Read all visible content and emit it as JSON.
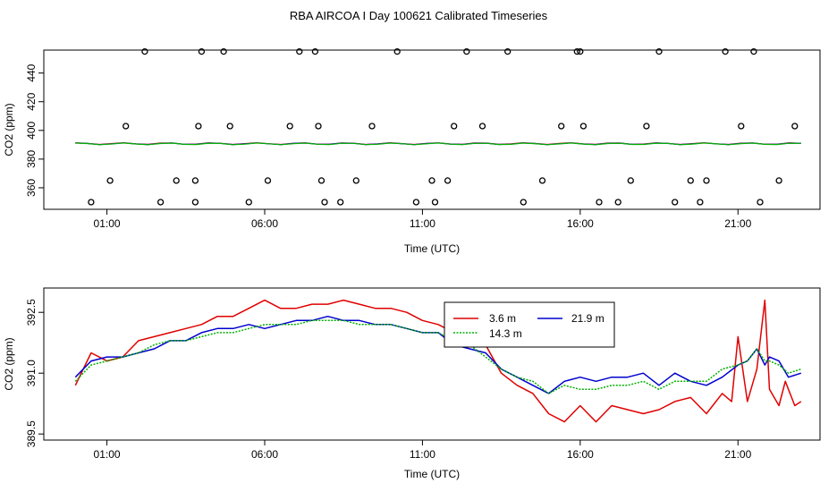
{
  "title": "RBA AIRCOA I  Day 100621  Calibrated Timeseries",
  "chart_data": [
    {
      "type": "scatter+line",
      "xlabel": "Time (UTC)",
      "ylabel": "CO2 (ppm)",
      "xlim": [
        -1.0,
        23.6
      ],
      "ylim": [
        345,
        456
      ],
      "xticks": [
        1,
        6,
        11,
        16,
        21
      ],
      "xtick_labels": [
        "01:00",
        "06:00",
        "11:00",
        "16:00",
        "21:00"
      ],
      "yticks": [
        360,
        380,
        400,
        420,
        440
      ],
      "ytick_labels": [
        "360",
        "380",
        "400",
        "420",
        "440"
      ],
      "outlier_points": {
        "x": [
          0.5,
          1.1,
          1.6,
          2.2,
          2.7,
          3.2,
          3.8,
          3.8,
          3.9,
          4.0,
          4.7,
          4.9,
          5.5,
          6.1,
          6.8,
          7.1,
          7.6,
          7.7,
          7.8,
          7.9,
          8.4,
          8.9,
          9.4,
          10.2,
          10.8,
          11.3,
          11.4,
          11.8,
          12.0,
          12.4,
          12.9,
          13.7,
          14.2,
          14.8,
          15.4,
          15.9,
          16.0,
          16.1,
          16.6,
          17.2,
          17.6,
          18.1,
          18.5,
          19.0,
          19.5,
          19.8,
          20.0,
          20.6,
          21.1,
          21.5,
          21.7,
          22.3,
          22.8
        ],
        "y": [
          350,
          365,
          403,
          455,
          350,
          365,
          350,
          365,
          403,
          455,
          455,
          403,
          350,
          365,
          403,
          455,
          455,
          403,
          365,
          350,
          350,
          365,
          403,
          455,
          350,
          365,
          350,
          365,
          403,
          455,
          403,
          455,
          350,
          365,
          403,
          455,
          455,
          403,
          350,
          350,
          365,
          403,
          455,
          350,
          365,
          350,
          365,
          455,
          403,
          455,
          350,
          365,
          403
        ]
      },
      "series": [
        {
          "name": "3.6 m",
          "color": "#e00000",
          "level": 390.8
        },
        {
          "name": "21.9 m",
          "color": "#0000d0",
          "level": 390.7
        },
        {
          "name": "14.3 m",
          "color": "#00b000",
          "level": 390.6
        }
      ]
    },
    {
      "type": "line",
      "xlabel": "Time (UTC)",
      "ylabel": "CO2 (ppm)",
      "xlim": [
        -1.0,
        23.6
      ],
      "ylim": [
        389.35,
        393.1
      ],
      "xticks": [
        1,
        6,
        11,
        16,
        21
      ],
      "xtick_labels": [
        "01:00",
        "06:00",
        "11:00",
        "16:00",
        "21:00"
      ],
      "yticks": [
        389.5,
        391.0,
        392.5
      ],
      "ytick_labels": [
        "389.5",
        "391.0",
        "392.5"
      ],
      "legend": {
        "placement": "top-center"
      },
      "series": [
        {
          "name": "3.6 m",
          "color": "#e00000",
          "x": [
            0.0,
            0.5,
            1.0,
            1.5,
            2.0,
            2.5,
            3.0,
            3.5,
            4.0,
            4.5,
            5.0,
            5.5,
            6.0,
            6.5,
            7.0,
            7.5,
            8.0,
            8.5,
            9.0,
            9.5,
            10.0,
            10.5,
            11.0,
            11.5,
            12.0,
            12.5,
            13.0,
            13.5,
            14.0,
            14.5,
            15.0,
            15.5,
            16.0,
            16.5,
            17.0,
            17.5,
            18.0,
            18.5,
            19.0,
            19.5,
            20.0,
            20.5,
            20.8,
            21.0,
            21.3,
            21.6,
            21.85,
            22.0,
            22.3,
            22.5,
            22.8,
            23.0
          ],
          "y": [
            390.7,
            391.5,
            391.3,
            391.4,
            391.8,
            391.9,
            392.0,
            392.1,
            392.2,
            392.4,
            392.4,
            392.6,
            392.8,
            392.6,
            392.6,
            392.7,
            392.7,
            392.8,
            392.7,
            392.6,
            392.6,
            392.5,
            392.3,
            392.2,
            392.0,
            391.9,
            391.7,
            391.0,
            390.7,
            390.5,
            390.0,
            389.8,
            390.2,
            389.8,
            390.2,
            390.1,
            390.0,
            390.1,
            390.3,
            390.4,
            390.0,
            390.5,
            390.3,
            391.9,
            390.3,
            391.1,
            392.8,
            390.6,
            390.2,
            390.8,
            390.2,
            390.3
          ]
        },
        {
          "name": "21.9 m",
          "color": "#0000d0",
          "x": [
            0.0,
            0.5,
            1.0,
            1.5,
            2.0,
            2.5,
            3.0,
            3.5,
            4.0,
            4.5,
            5.0,
            5.5,
            6.0,
            6.5,
            7.0,
            7.5,
            8.0,
            8.5,
            9.0,
            9.5,
            10.0,
            10.5,
            11.0,
            11.5,
            12.0,
            12.5,
            13.0,
            13.5,
            14.0,
            14.5,
            15.0,
            15.5,
            16.0,
            16.5,
            17.0,
            17.5,
            18.0,
            18.5,
            19.0,
            19.5,
            20.0,
            20.5,
            21.0,
            21.3,
            21.6,
            21.85,
            22.0,
            22.3,
            22.6,
            23.0
          ],
          "y": [
            390.9,
            391.3,
            391.4,
            391.4,
            391.5,
            391.6,
            391.8,
            391.8,
            392.0,
            392.1,
            392.1,
            392.2,
            392.1,
            392.2,
            392.3,
            392.3,
            392.4,
            392.3,
            392.3,
            392.2,
            392.2,
            392.1,
            392.0,
            392.0,
            391.7,
            391.6,
            391.5,
            391.1,
            390.9,
            390.7,
            390.5,
            390.8,
            390.9,
            390.8,
            390.9,
            390.9,
            391.0,
            390.7,
            391.0,
            390.8,
            390.7,
            390.9,
            391.2,
            391.3,
            391.6,
            391.2,
            391.4,
            391.3,
            390.9,
            391.0
          ]
        },
        {
          "name": "14.3 m",
          "color": "#00b000",
          "x": [
            0.0,
            0.5,
            1.0,
            1.5,
            2.0,
            2.5,
            3.0,
            3.5,
            4.0,
            4.5,
            5.0,
            5.5,
            6.0,
            6.5,
            7.0,
            7.5,
            8.0,
            8.5,
            9.0,
            9.5,
            10.0,
            10.5,
            11.0,
            11.5,
            12.0,
            12.5,
            13.0,
            13.5,
            14.0,
            14.5,
            15.0,
            15.5,
            16.0,
            16.5,
            17.0,
            17.5,
            18.0,
            18.5,
            19.0,
            19.5,
            20.0,
            20.5,
            21.0,
            21.3,
            21.6,
            21.85,
            22.0,
            22.3,
            22.6,
            23.0
          ],
          "y": [
            390.8,
            391.2,
            391.3,
            391.4,
            391.5,
            391.7,
            391.8,
            391.8,
            391.9,
            392.0,
            392.0,
            392.1,
            392.2,
            392.2,
            392.2,
            392.3,
            392.3,
            392.3,
            392.2,
            392.2,
            392.2,
            392.1,
            392.0,
            392.0,
            391.8,
            391.7,
            391.4,
            391.1,
            390.9,
            390.8,
            390.5,
            390.7,
            390.6,
            390.6,
            390.7,
            390.7,
            390.8,
            390.6,
            390.8,
            390.8,
            390.8,
            391.1,
            391.2,
            391.3,
            391.6,
            391.3,
            391.3,
            391.2,
            391.0,
            391.1
          ]
        }
      ]
    }
  ]
}
